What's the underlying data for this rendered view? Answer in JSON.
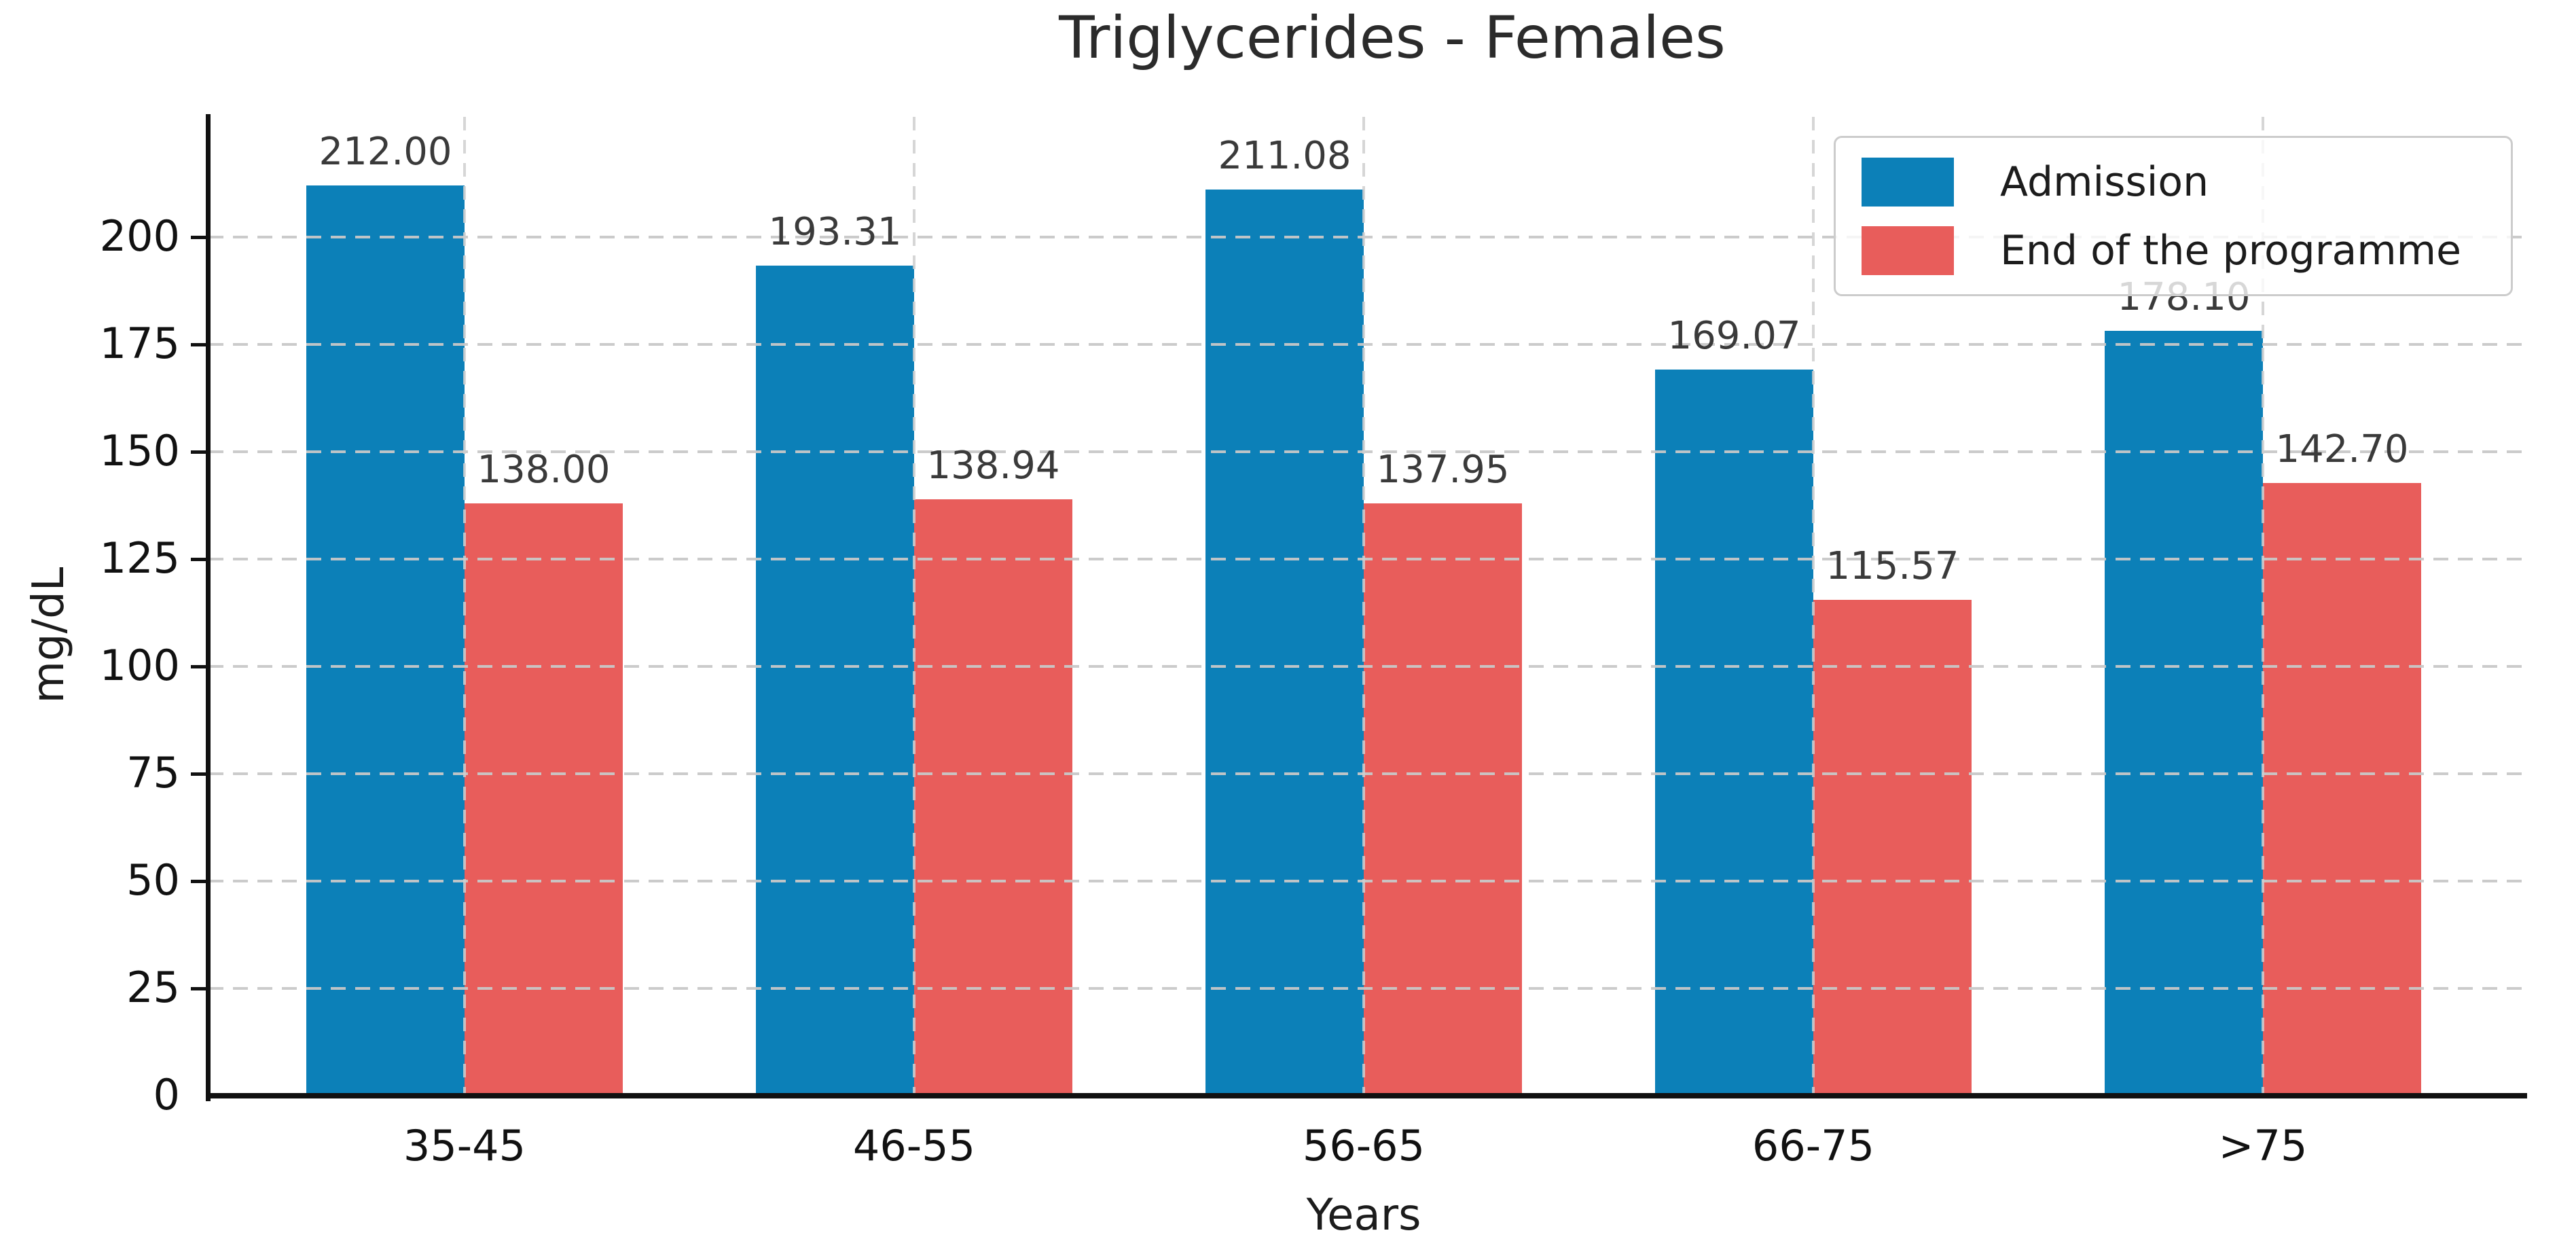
{
  "title": "Triglycerides - Females",
  "chart_data": {
    "type": "bar",
    "title": "Triglycerides - Females",
    "xlabel": "Years",
    "ylabel": "mg/dL",
    "categories": [
      "35-45",
      "46-55",
      "56-65",
      "66-75",
      ">75"
    ],
    "series": [
      {
        "name": "Admission",
        "color": "#0c80b8",
        "values": [
          212.0,
          193.31,
          211.08,
          169.07,
          178.1
        ]
      },
      {
        "name": "End of the programme",
        "color": "#e85d5b",
        "values": [
          138.0,
          138.94,
          137.95,
          115.57,
          142.7
        ]
      }
    ],
    "bar_value_labels": true,
    "label_decimals": 2,
    "yticks": [
      0,
      25,
      50,
      75,
      100,
      125,
      150,
      175,
      200
    ],
    "ylim": [
      0,
      228
    ],
    "grid": {
      "horizontal": true,
      "vertical": true,
      "style": "dashed",
      "color": "#c8c8c8",
      "drawn_over_bars": true
    },
    "legend_position": "upper right",
    "legend_overlapped_label": {
      "series": "Admission",
      "category": ">75",
      "label": "178.10"
    }
  }
}
